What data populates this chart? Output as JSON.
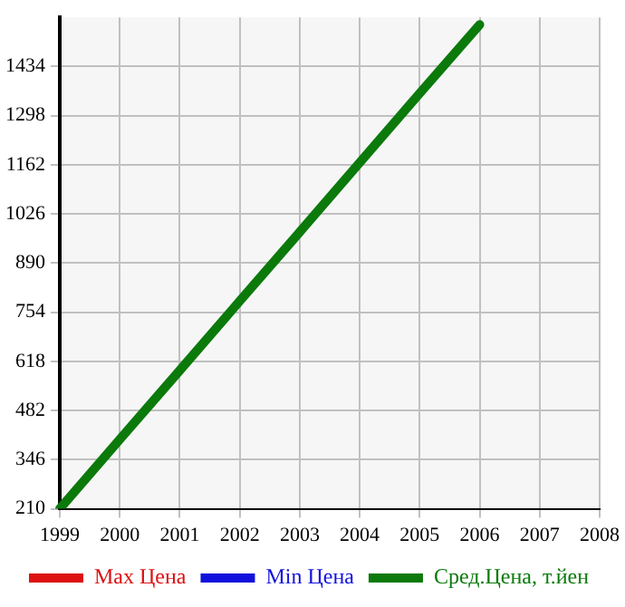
{
  "chart_data": {
    "type": "line",
    "categories": [
      "1999",
      "2000",
      "2001",
      "2002",
      "2003",
      "2004",
      "2005",
      "2006",
      "2007",
      "2008"
    ],
    "series": [
      {
        "name": "Max Цена",
        "color": "#dd1111",
        "values": [
          null,
          null,
          null,
          null,
          null,
          null,
          null,
          null,
          null,
          null
        ]
      },
      {
        "name": "Min Цена",
        "color": "#1111dd",
        "values": [
          null,
          null,
          null,
          null,
          null,
          null,
          null,
          null,
          null,
          null
        ]
      },
      {
        "name": "Сред.Цена, т.йен",
        "color": "#0b7a0b",
        "values": [
          210,
          402,
          593,
          785,
          976,
          1168,
          1360,
          1550,
          null,
          null
        ]
      }
    ],
    "ylim": [
      210,
      1570
    ],
    "yticks": [
      210,
      346,
      482,
      618,
      754,
      890,
      1026,
      1162,
      1298,
      1434
    ],
    "grid": true,
    "legend": "bottom",
    "marker": "none",
    "line_style": "solid"
  }
}
